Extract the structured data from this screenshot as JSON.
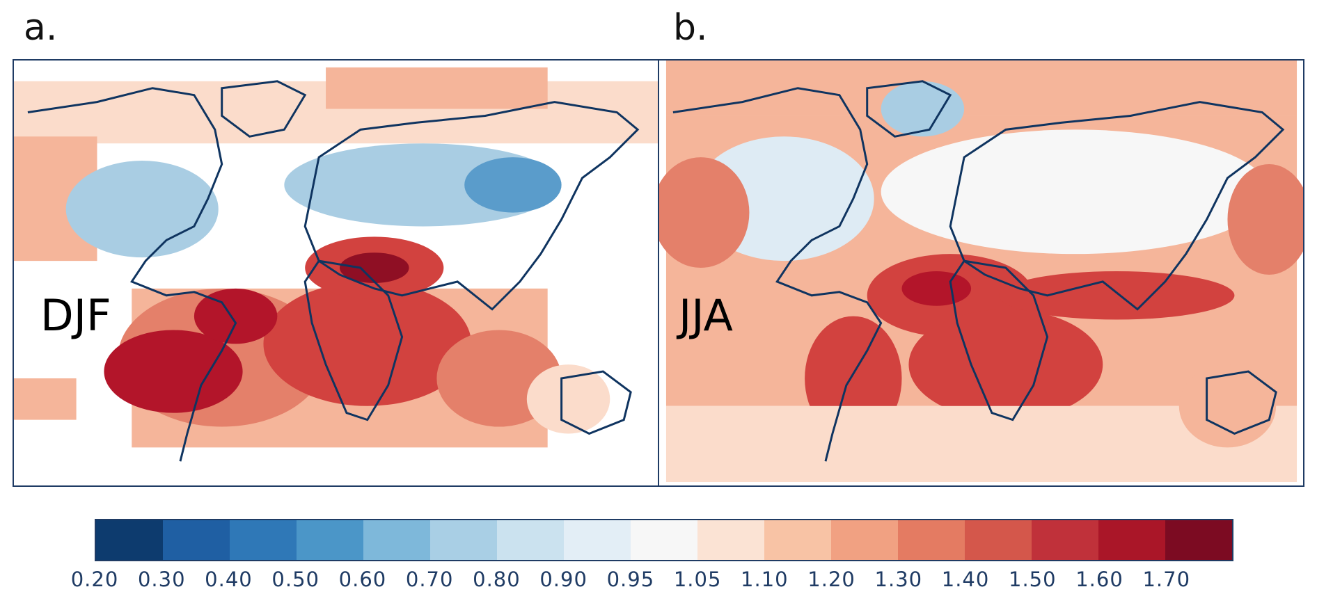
{
  "panels": [
    {
      "letter": "a.",
      "season": "DJF"
    },
    {
      "letter": "b.",
      "season": "JJA"
    }
  ],
  "colorbar": {
    "colors": [
      "#0d3b6e",
      "#1f5fa3",
      "#2f78b7",
      "#4b96c8",
      "#7eb8da",
      "#a9cfe5",
      "#cbe2ef",
      "#e3eef6",
      "#f7f7f7",
      "#fbe3d4",
      "#f8c3a5",
      "#f1a182",
      "#e47b62",
      "#d4574b",
      "#c0313a",
      "#aa1628",
      "#7c0b22"
    ],
    "tick_labels": [
      "0.20",
      "0.30",
      "0.40",
      "0.50",
      "0.60",
      "0.70",
      "0.80",
      "0.90",
      "0.95",
      "1.05",
      "1.10",
      "1.20",
      "1.30",
      "1.40",
      "1.50",
      "1.60",
      "1.70"
    ]
  },
  "map_colors": {
    "coast": "#0f3460",
    "dark_red": "#b3152a",
    "red": "#d2423f",
    "mid_red": "#e4806a",
    "light_red": "#f5b59a",
    "pale_red": "#fbdccb",
    "pale_blue": "#deebf4",
    "light_blue": "#a9cde3",
    "blue": "#5a9ccb"
  }
}
